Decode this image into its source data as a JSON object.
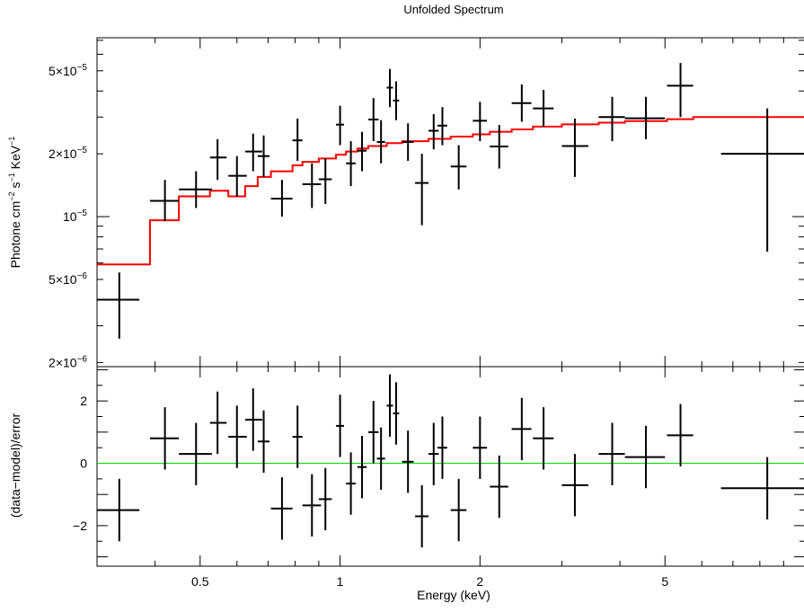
{
  "chart_data": {
    "type": "scatter",
    "title": "Unfolded Spectrum",
    "x_scale": "log",
    "xlim": [
      0.3,
      10
    ],
    "xlabel": "Energy (keV)",
    "x_ticks": [
      {
        "value": 0.5,
        "label": "0.5"
      },
      {
        "value": 1,
        "label": "1"
      },
      {
        "value": 2,
        "label": "2"
      },
      {
        "value": 5,
        "label": "5"
      }
    ],
    "top_panel": {
      "ylabel_base": "Photone cm",
      "ylabel_exp1": "−2",
      "ylabel_mid": " s",
      "ylabel_exp2": "−1",
      "ylabel_end": " KeV",
      "ylabel_exp3": "−1",
      "y_scale": "log",
      "ylim": [
        1.91e-06,
        7.2e-05
      ],
      "y_ticks": [
        {
          "value": 2e-06,
          "mant": "2×10",
          "exp": "−6"
        },
        {
          "value": 5e-06,
          "mant": "5×10",
          "exp": "−6"
        },
        {
          "value": 1e-05,
          "mant": "10",
          "exp": "−5"
        },
        {
          "value": 2e-05,
          "mant": "2×10",
          "exp": "−5"
        },
        {
          "value": 5e-05,
          "mant": "5×10",
          "exp": "−5"
        }
      ],
      "data_color": "#000000",
      "data": [
        {
          "x": 0.335,
          "xlo": 0.3,
          "xhi": 0.37,
          "y": 4e-06,
          "ylo": 2.6e-06,
          "yhi": 5.4e-06
        },
        {
          "x": 0.42,
          "xlo": 0.39,
          "xhi": 0.45,
          "y": 1.19e-05,
          "ylo": 9.5e-06,
          "yhi": 1.5e-05
        },
        {
          "x": 0.49,
          "xlo": 0.45,
          "xhi": 0.53,
          "y": 1.35e-05,
          "ylo": 1.1e-05,
          "yhi": 1.65e-05
        },
        {
          "x": 0.545,
          "xlo": 0.525,
          "xhi": 0.57,
          "y": 1.92e-05,
          "ylo": 1.5e-05,
          "yhi": 2.35e-05
        },
        {
          "x": 0.6,
          "xlo": 0.575,
          "xhi": 0.63,
          "y": 1.57e-05,
          "ylo": 1.25e-05,
          "yhi": 1.95e-05
        },
        {
          "x": 0.65,
          "xlo": 0.625,
          "xhi": 0.68,
          "y": 2.05e-05,
          "ylo": 1.65e-05,
          "yhi": 2.5e-05
        },
        {
          "x": 0.685,
          "xlo": 0.665,
          "xhi": 0.705,
          "y": 1.95e-05,
          "ylo": 1.55e-05,
          "yhi": 2.45e-05
        },
        {
          "x": 0.75,
          "xlo": 0.71,
          "xhi": 0.79,
          "y": 1.22e-05,
          "ylo": 1e-05,
          "yhi": 1.5e-05
        },
        {
          "x": 0.81,
          "xlo": 0.79,
          "xhi": 0.83,
          "y": 2.32e-05,
          "ylo": 1.85e-05,
          "yhi": 2.95e-05
        },
        {
          "x": 0.87,
          "xlo": 0.83,
          "xhi": 0.91,
          "y": 1.43e-05,
          "ylo": 1.1e-05,
          "yhi": 1.8e-05
        },
        {
          "x": 0.93,
          "xlo": 0.9,
          "xhi": 0.96,
          "y": 1.51e-05,
          "ylo": 1.15e-05,
          "yhi": 1.9e-05
        },
        {
          "x": 1.0,
          "xlo": 0.98,
          "xhi": 1.02,
          "y": 2.76e-05,
          "ylo": 2.2e-05,
          "yhi": 3.4e-05
        },
        {
          "x": 1.055,
          "xlo": 1.03,
          "xhi": 1.08,
          "y": 1.8e-05,
          "ylo": 1.4e-05,
          "yhi": 2.3e-05
        },
        {
          "x": 1.115,
          "xlo": 1.09,
          "xhi": 1.14,
          "y": 2.07e-05,
          "ylo": 1.65e-05,
          "yhi": 2.55e-05
        },
        {
          "x": 1.18,
          "xlo": 1.15,
          "xhi": 1.21,
          "y": 2.92e-05,
          "ylo": 2.3e-05,
          "yhi": 3.7e-05
        },
        {
          "x": 1.225,
          "xlo": 1.2,
          "xhi": 1.25,
          "y": 2.28e-05,
          "ylo": 1.8e-05,
          "yhi": 2.9e-05
        },
        {
          "x": 1.28,
          "xlo": 1.26,
          "xhi": 1.3,
          "y": 4.15e-05,
          "ylo": 3.35e-05,
          "yhi": 5.1e-05
        },
        {
          "x": 1.32,
          "xlo": 1.3,
          "xhi": 1.34,
          "y": 3.6e-05,
          "ylo": 2.9e-05,
          "yhi": 4.45e-05
        },
        {
          "x": 1.4,
          "xlo": 1.36,
          "xhi": 1.44,
          "y": 2.28e-05,
          "ylo": 1.85e-05,
          "yhi": 2.8e-05
        },
        {
          "x": 1.5,
          "xlo": 1.45,
          "xhi": 1.55,
          "y": 1.45e-05,
          "ylo": 9.1e-06,
          "yhi": 2e-05
        },
        {
          "x": 1.59,
          "xlo": 1.55,
          "xhi": 1.63,
          "y": 2.58e-05,
          "ylo": 2.1e-05,
          "yhi": 3.1e-05
        },
        {
          "x": 1.66,
          "xlo": 1.62,
          "xhi": 1.7,
          "y": 2.73e-05,
          "ylo": 2.2e-05,
          "yhi": 3.35e-05
        },
        {
          "x": 1.8,
          "xlo": 1.73,
          "xhi": 1.87,
          "y": 1.74e-05,
          "ylo": 1.35e-05,
          "yhi": 2.2e-05
        },
        {
          "x": 2.0,
          "xlo": 1.93,
          "xhi": 2.07,
          "y": 2.88e-05,
          "ylo": 2.3e-05,
          "yhi": 3.55e-05
        },
        {
          "x": 2.2,
          "xlo": 2.1,
          "xhi": 2.3,
          "y": 2.17e-05,
          "ylo": 1.7e-05,
          "yhi": 2.75e-05
        },
        {
          "x": 2.46,
          "xlo": 2.34,
          "xhi": 2.58,
          "y": 3.5e-05,
          "ylo": 2.85e-05,
          "yhi": 4.3e-05
        },
        {
          "x": 2.74,
          "xlo": 2.6,
          "xhi": 2.88,
          "y": 3.3e-05,
          "ylo": 2.7e-05,
          "yhi": 4.05e-05
        },
        {
          "x": 3.2,
          "xlo": 3.0,
          "xhi": 3.42,
          "y": 2.18e-05,
          "ylo": 1.55e-05,
          "yhi": 2.95e-05
        },
        {
          "x": 3.85,
          "xlo": 3.6,
          "xhi": 4.1,
          "y": 3e-05,
          "ylo": 2.3e-05,
          "yhi": 3.75e-05
        },
        {
          "x": 4.55,
          "xlo": 4.1,
          "xhi": 5.0,
          "y": 2.96e-05,
          "ylo": 2.35e-05,
          "yhi": 3.75e-05
        },
        {
          "x": 5.4,
          "xlo": 5.05,
          "xhi": 5.75,
          "y": 4.24e-05,
          "ylo": 3e-05,
          "yhi": 5.45e-05
        },
        {
          "x": 8.3,
          "xlo": 6.6,
          "xhi": 10.5,
          "y": 2e-05,
          "ylo": 6.8e-06,
          "yhi": 3.3e-05
        }
      ],
      "model_color": "#ff0000",
      "model_steps": [
        {
          "x0": 0.3,
          "x1": 0.39,
          "y": 5.9e-06
        },
        {
          "x0": 0.39,
          "x1": 0.45,
          "y": 9.6e-06
        },
        {
          "x0": 0.45,
          "x1": 0.525,
          "y": 1.25e-05
        },
        {
          "x0": 0.525,
          "x1": 0.575,
          "y": 1.33e-05
        },
        {
          "x0": 0.575,
          "x1": 0.625,
          "y": 1.25e-05
        },
        {
          "x0": 0.625,
          "x1": 0.665,
          "y": 1.4e-05
        },
        {
          "x0": 0.665,
          "x1": 0.71,
          "y": 1.55e-05
        },
        {
          "x0": 0.71,
          "x1": 0.79,
          "y": 1.65e-05
        },
        {
          "x0": 0.79,
          "x1": 0.83,
          "y": 1.76e-05
        },
        {
          "x0": 0.83,
          "x1": 0.9,
          "y": 1.83e-05
        },
        {
          "x0": 0.9,
          "x1": 0.98,
          "y": 1.9e-05
        },
        {
          "x0": 0.98,
          "x1": 1.03,
          "y": 1.98e-05
        },
        {
          "x0": 1.03,
          "x1": 1.09,
          "y": 2.05e-05
        },
        {
          "x0": 1.09,
          "x1": 1.15,
          "y": 2.12e-05
        },
        {
          "x0": 1.15,
          "x1": 1.26,
          "y": 2.18e-05
        },
        {
          "x0": 1.26,
          "x1": 1.36,
          "y": 2.25e-05
        },
        {
          "x0": 1.36,
          "x1": 1.55,
          "y": 2.3e-05
        },
        {
          "x0": 1.55,
          "x1": 1.73,
          "y": 2.36e-05
        },
        {
          "x0": 1.73,
          "x1": 1.93,
          "y": 2.42e-05
        },
        {
          "x0": 1.93,
          "x1": 2.1,
          "y": 2.48e-05
        },
        {
          "x0": 2.1,
          "x1": 2.34,
          "y": 2.55e-05
        },
        {
          "x0": 2.34,
          "x1": 2.6,
          "y": 2.62e-05
        },
        {
          "x0": 2.6,
          "x1": 3.0,
          "y": 2.7e-05
        },
        {
          "x0": 3.0,
          "x1": 3.6,
          "y": 2.77e-05
        },
        {
          "x0": 3.6,
          "x1": 4.1,
          "y": 2.82e-05
        },
        {
          "x0": 4.1,
          "x1": 5.05,
          "y": 2.87e-05
        },
        {
          "x0": 5.05,
          "x1": 5.75,
          "y": 2.93e-05
        },
        {
          "x0": 5.75,
          "x1": 10.5,
          "y": 3e-05
        }
      ]
    },
    "bottom_panel": {
      "ylabel": "(data−model)/error",
      "y_scale": "linear",
      "ylim": [
        -3.3,
        3.1
      ],
      "y_ticks": [
        {
          "value": -2,
          "label": "−2"
        },
        {
          "value": 0,
          "label": "0"
        },
        {
          "value": 2,
          "label": "2"
        }
      ],
      "zero_line_color": "#00dd00",
      "data": [
        {
          "x": 0.335,
          "xlo": 0.3,
          "xhi": 0.37,
          "y": -1.5,
          "yerr": 1.0
        },
        {
          "x": 0.42,
          "xlo": 0.39,
          "xhi": 0.45,
          "y": 0.8,
          "yerr": 1.0
        },
        {
          "x": 0.49,
          "xlo": 0.45,
          "xhi": 0.53,
          "y": 0.3,
          "yerr": 1.0
        },
        {
          "x": 0.545,
          "xlo": 0.525,
          "xhi": 0.57,
          "y": 1.3,
          "yerr": 1.0
        },
        {
          "x": 0.6,
          "xlo": 0.575,
          "xhi": 0.63,
          "y": 0.85,
          "yerr": 1.0
        },
        {
          "x": 0.65,
          "xlo": 0.625,
          "xhi": 0.68,
          "y": 1.4,
          "yerr": 1.0
        },
        {
          "x": 0.685,
          "xlo": 0.665,
          "xhi": 0.705,
          "y": 0.7,
          "yerr": 1.0
        },
        {
          "x": 0.75,
          "xlo": 0.71,
          "xhi": 0.79,
          "y": -1.45,
          "yerr": 1.0
        },
        {
          "x": 0.81,
          "xlo": 0.79,
          "xhi": 0.83,
          "y": 0.85,
          "yerr": 1.0
        },
        {
          "x": 0.87,
          "xlo": 0.83,
          "xhi": 0.91,
          "y": -1.35,
          "yerr": 1.0
        },
        {
          "x": 0.93,
          "xlo": 0.9,
          "xhi": 0.96,
          "y": -1.15,
          "yerr": 1.0
        },
        {
          "x": 1.0,
          "xlo": 0.98,
          "xhi": 1.02,
          "y": 1.2,
          "yerr": 1.0
        },
        {
          "x": 1.055,
          "xlo": 1.03,
          "xhi": 1.08,
          "y": -0.65,
          "yerr": 1.0
        },
        {
          "x": 1.115,
          "xlo": 1.09,
          "xhi": 1.14,
          "y": -0.12,
          "yerr": 1.0
        },
        {
          "x": 1.18,
          "xlo": 1.15,
          "xhi": 1.21,
          "y": 1.0,
          "yerr": 1.0
        },
        {
          "x": 1.225,
          "xlo": 1.2,
          "xhi": 1.25,
          "y": 0.15,
          "yerr": 1.0
        },
        {
          "x": 1.28,
          "xlo": 1.26,
          "xhi": 1.3,
          "y": 1.85,
          "yerr": 1.0
        },
        {
          "x": 1.32,
          "xlo": 1.3,
          "xhi": 1.34,
          "y": 1.6,
          "yerr": 1.0
        },
        {
          "x": 1.4,
          "xlo": 1.36,
          "xhi": 1.44,
          "y": 0.05,
          "yerr": 1.0
        },
        {
          "x": 1.5,
          "xlo": 1.45,
          "xhi": 1.55,
          "y": -1.7,
          "yerr": 1.0
        },
        {
          "x": 1.59,
          "xlo": 1.55,
          "xhi": 1.63,
          "y": 0.3,
          "yerr": 1.0
        },
        {
          "x": 1.66,
          "xlo": 1.62,
          "xhi": 1.7,
          "y": 0.5,
          "yerr": 1.0
        },
        {
          "x": 1.8,
          "xlo": 1.73,
          "xhi": 1.87,
          "y": -1.5,
          "yerr": 1.0
        },
        {
          "x": 2.0,
          "xlo": 1.93,
          "xhi": 2.07,
          "y": 0.5,
          "yerr": 1.0
        },
        {
          "x": 2.2,
          "xlo": 2.1,
          "xhi": 2.3,
          "y": -0.75,
          "yerr": 1.0
        },
        {
          "x": 2.46,
          "xlo": 2.34,
          "xhi": 2.58,
          "y": 1.1,
          "yerr": 1.0
        },
        {
          "x": 2.74,
          "xlo": 2.6,
          "xhi": 2.88,
          "y": 0.8,
          "yerr": 1.0
        },
        {
          "x": 3.2,
          "xlo": 3.0,
          "xhi": 3.42,
          "y": -0.7,
          "yerr": 1.0
        },
        {
          "x": 3.85,
          "xlo": 3.6,
          "xhi": 4.1,
          "y": 0.3,
          "yerr": 1.0
        },
        {
          "x": 4.55,
          "xlo": 4.1,
          "xhi": 5.0,
          "y": 0.2,
          "yerr": 1.0
        },
        {
          "x": 5.4,
          "xlo": 5.05,
          "xhi": 5.75,
          "y": 0.9,
          "yerr": 1.0
        },
        {
          "x": 8.3,
          "xlo": 6.6,
          "xhi": 10.5,
          "y": -0.8,
          "yerr": 1.0
        }
      ]
    }
  }
}
